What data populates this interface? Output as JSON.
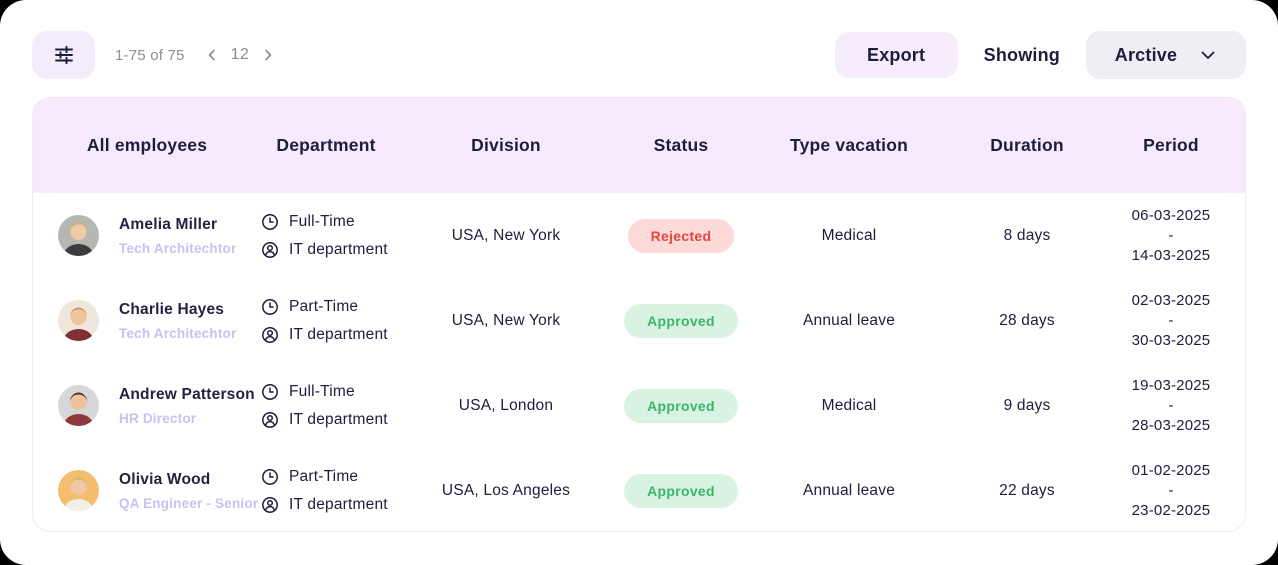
{
  "topbar": {
    "range_label": "1-75 of 75",
    "page_number": "12",
    "export_label": "Export",
    "showing_label": "Showing",
    "filter_selected": "Arctive"
  },
  "table": {
    "columns": [
      "All employees",
      "Department",
      "Division",
      "Status",
      "Type vacation",
      "Duration",
      "Period"
    ],
    "period_separator": "-",
    "rows": [
      {
        "name": "Amelia Miller",
        "role": "Tech Architechtor",
        "employment_type": "Full-Time",
        "department": "IT department",
        "division": "USA, New York",
        "status": "Rejected",
        "type_vacation": "Medical",
        "duration": "8 days",
        "period_start": "06-03-2025",
        "period_end": "14-03-2025",
        "avatar": {
          "bg": "#b4b8b0",
          "skin": "#f1cba9",
          "hair": "#d9ae6d",
          "shirt": "#3c3c40"
        }
      },
      {
        "name": "Charlie Hayes",
        "role": "Tech Architechtor",
        "employment_type": "Part-Time",
        "department": "IT department",
        "division": "USA, New York",
        "status": "Approved",
        "type_vacation": "Annual leave",
        "duration": "28 days",
        "period_start": "02-03-2025",
        "period_end": "30-03-2025",
        "avatar": {
          "bg": "#efe7db",
          "skin": "#f0c49c",
          "hair": "#c89b5f",
          "shirt": "#7e3034"
        }
      },
      {
        "name": "Andrew Patterson",
        "role": "HR Director",
        "employment_type": "Full-Time",
        "department": "IT department",
        "division": "USA, London",
        "status": "Approved",
        "type_vacation": "Medical",
        "duration": "9 days",
        "period_start": "19-03-2025",
        "period_end": "28-03-2025",
        "avatar": {
          "bg": "#d7d7da",
          "skin": "#eec29c",
          "hair": "#4a3226",
          "shirt": "#8e3a3c"
        }
      },
      {
        "name": "Olivia Wood",
        "role": "QA Engineer - Senior",
        "employment_type": "Part-Time",
        "department": "IT department",
        "division": "USA, Los Angeles",
        "status": "Approved",
        "type_vacation": "Annual leave",
        "duration": "22 days",
        "period_start": "01-02-2025",
        "period_end": "23-02-2025",
        "avatar": {
          "bg": "#f3bf6e",
          "skin": "#f1c8a4",
          "hair": "#d9b36a",
          "shirt": "#f3efe9"
        }
      }
    ]
  },
  "colors": {
    "accent_lavender": "#f6eafc",
    "button_lavender": "#f7ecfc",
    "dropdown_gray": "#f0eef5",
    "text_dark": "#1d1d3c",
    "text_muted": "#8d8d98",
    "role_purple": "#c9c1f3",
    "status": {
      "rejected": {
        "bg": "#fbdad8",
        "text": "#e8453f"
      },
      "approved": {
        "bg": "#d9f3e2",
        "text": "#3bb56a"
      }
    }
  }
}
